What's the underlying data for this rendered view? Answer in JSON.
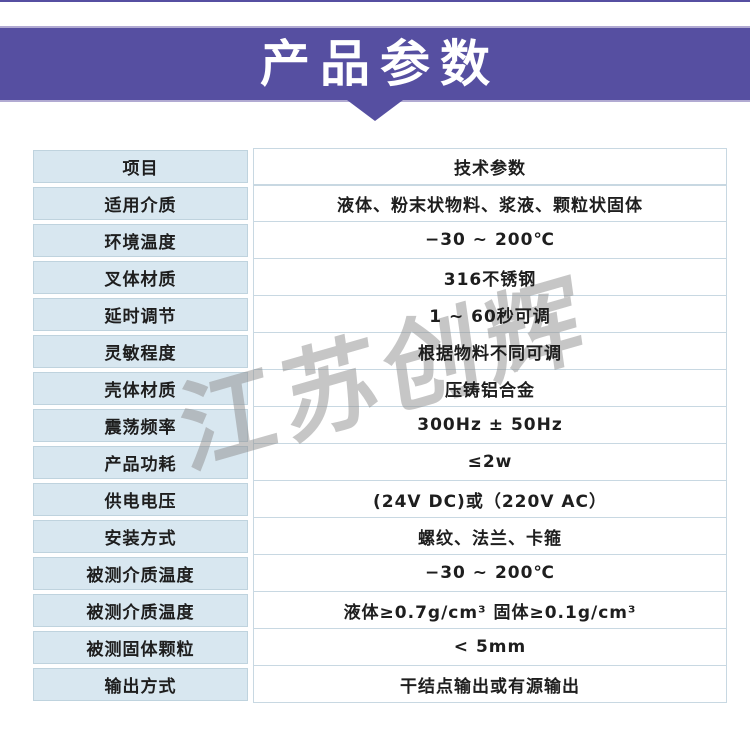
{
  "banner": {
    "title": "产品参数",
    "color": "#564fa1"
  },
  "watermark": {
    "text": "江苏创辉"
  },
  "table": {
    "header": {
      "item": "项目",
      "value": "技术参数"
    },
    "rows": [
      {
        "label": "适用介质",
        "value": "液体、粉末状物料、浆液、颗粒状固体"
      },
      {
        "label": "环境温度",
        "value": "−30 ~ 200℃"
      },
      {
        "label": "叉体材质",
        "value": "316不锈钢"
      },
      {
        "label": "延时调节",
        "value": "1 ~ 60秒可调"
      },
      {
        "label": "灵敏程度",
        "value": "根据物料不同可调"
      },
      {
        "label": "壳体材质",
        "value": "压铸铝合金"
      },
      {
        "label": "震荡频率",
        "value": "300Hz ± 50Hz"
      },
      {
        "label": "产品功耗",
        "value": "≤2w"
      },
      {
        "label": "供电电压",
        "value": "(24V DC)或（220V AC）"
      },
      {
        "label": "安装方式",
        "value": "螺纹、法兰、卡箍"
      },
      {
        "label": "被测介质温度",
        "value": "−30 ~ 200℃"
      },
      {
        "label": "被测介质温度",
        "value": "液体≥0.7g/cm³  固体≥0.1g/cm³"
      },
      {
        "label": "被测固体颗粒",
        "value": "< 5mm"
      },
      {
        "label": "输出方式",
        "value": "干结点输出或有源输出"
      }
    ]
  }
}
